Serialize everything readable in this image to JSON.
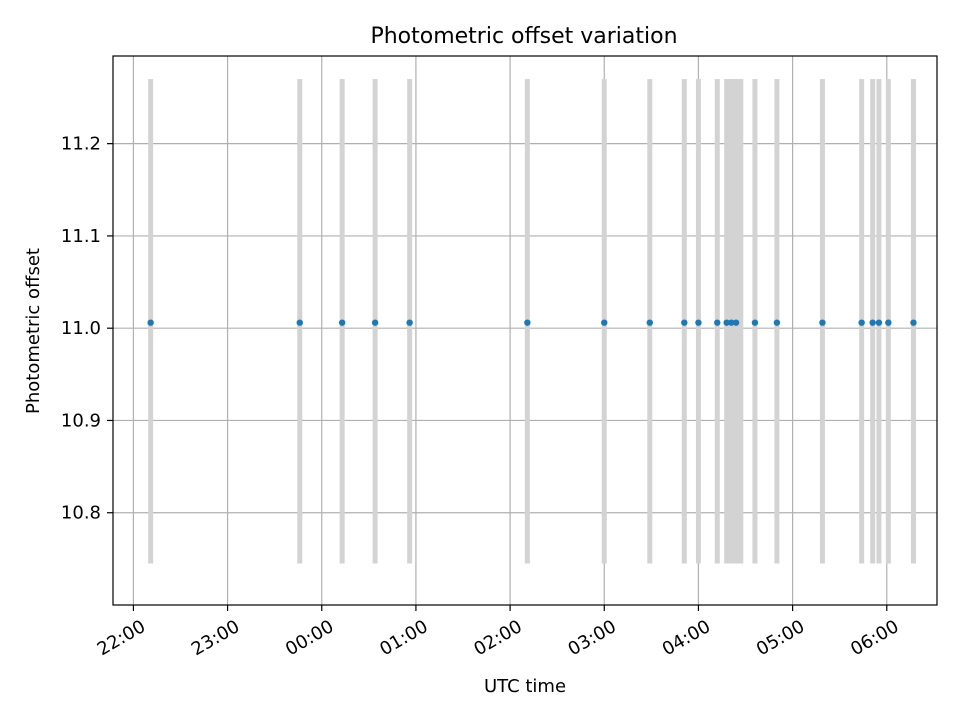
{
  "chart_data": {
    "type": "scatter",
    "title": "Photometric offset variation",
    "xlabel": "UTC time",
    "ylabel": "Photometric offset",
    "grid": true,
    "x_axis": {
      "kind": "time",
      "range": [
        "21:47",
        "06:32"
      ],
      "ticks": [
        "22:00",
        "23:00",
        "00:00",
        "01:00",
        "02:00",
        "03:00",
        "04:00",
        "05:00",
        "06:00"
      ],
      "tick_label_rotation": 30
    },
    "y_axis": {
      "range": [
        10.7,
        11.295
      ],
      "ticks": [
        10.8,
        10.9,
        11.0,
        11.1,
        11.2
      ],
      "tick_labels": [
        "10.8",
        "10.9",
        "11.0",
        "11.1",
        "11.2"
      ]
    },
    "exposure_bars": {
      "color": "#d3d3d3",
      "y_range": [
        10.745,
        11.27
      ],
      "times": [
        "22:11",
        "23:46",
        "00:13",
        "00:34",
        "00:56",
        "02:11",
        "03:00",
        "03:29",
        "03:51",
        "04:00",
        "04:12",
        "04:18",
        "04:20",
        "04:21",
        "04:23",
        "04:24",
        "04:27",
        "04:36",
        "04:50",
        "05:19",
        "05:44",
        "05:51",
        "05:55",
        "06:01",
        "06:17"
      ]
    },
    "series": [
      {
        "color": "#1f77b4",
        "marker": "dot",
        "points": [
          {
            "x": "22:11",
            "y": 11.006
          },
          {
            "x": "23:46",
            "y": 11.006
          },
          {
            "x": "00:13",
            "y": 11.006
          },
          {
            "x": "00:34",
            "y": 11.006
          },
          {
            "x": "00:56",
            "y": 11.006
          },
          {
            "x": "02:11",
            "y": 11.006
          },
          {
            "x": "03:00",
            "y": 11.006
          },
          {
            "x": "03:29",
            "y": 11.006
          },
          {
            "x": "03:51",
            "y": 11.006
          },
          {
            "x": "04:00",
            "y": 11.006
          },
          {
            "x": "04:12",
            "y": 11.006
          },
          {
            "x": "04:18",
            "y": 11.006
          },
          {
            "x": "04:21",
            "y": 11.006
          },
          {
            "x": "04:24",
            "y": 11.006
          },
          {
            "x": "04:36",
            "y": 11.006
          },
          {
            "x": "04:50",
            "y": 11.006
          },
          {
            "x": "05:19",
            "y": 11.006
          },
          {
            "x": "05:44",
            "y": 11.006
          },
          {
            "x": "05:51",
            "y": 11.006
          },
          {
            "x": "05:55",
            "y": 11.006
          },
          {
            "x": "06:01",
            "y": 11.006
          },
          {
            "x": "06:17",
            "y": 11.006
          }
        ]
      }
    ]
  }
}
